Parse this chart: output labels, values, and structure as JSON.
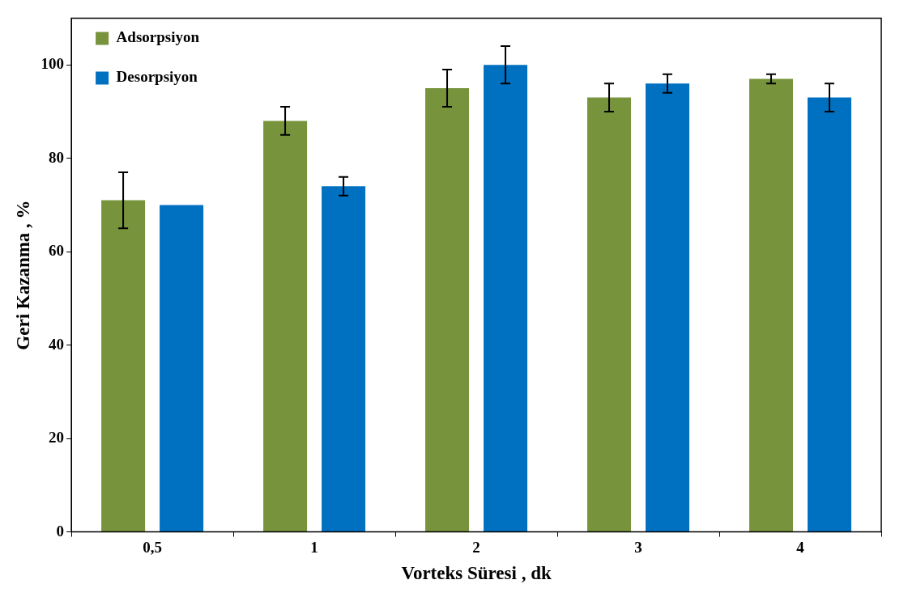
{
  "chart_data": {
    "type": "bar",
    "xlabel": "Vorteks Süresi , dk",
    "ylabel": "Geri Kazanma , %",
    "categories": [
      "0,5",
      "1",
      "2",
      "3",
      "4"
    ],
    "series": [
      {
        "name": "Adsorpsiyon",
        "color": "#77933c",
        "values": [
          71,
          88,
          95,
          93,
          97
        ],
        "errors": [
          6,
          3,
          4,
          3,
          1
        ]
      },
      {
        "name": "Desorpsiyon",
        "color": "#0070c0",
        "values": [
          70,
          74,
          100,
          96,
          93
        ],
        "errors": [
          null,
          2,
          4,
          2,
          3
        ]
      }
    ],
    "ylim": [
      0,
      110
    ],
    "yticks": [
      0,
      20,
      40,
      60,
      80,
      100
    ],
    "grid": false,
    "legend": "top left"
  }
}
